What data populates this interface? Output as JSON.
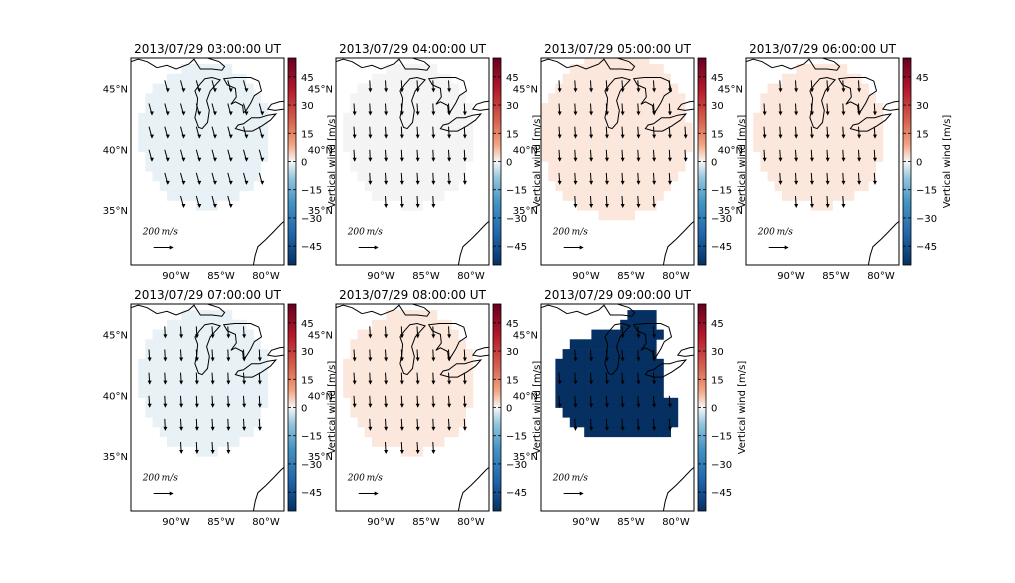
{
  "colors": {
    "strong_negative": "#053061",
    "light_negative": "#e8f1f5",
    "neutral": "#f4f4f4",
    "light_positive": "#fce7dc",
    "axis": "#000000"
  },
  "colorbar": {
    "label": "Vertical wind [m/s]",
    "ticks": [
      "45",
      "30",
      "15",
      "0",
      "−15",
      "−30",
      "−45"
    ],
    "range": [
      -55,
      55
    ],
    "colormap": "red-white-blue"
  },
  "axes_labels": {
    "x_ticks": [
      "90°W",
      "85°W",
      "80°W"
    ],
    "y_ticks": [
      "45°N",
      "40°N",
      "35°N"
    ]
  },
  "scale_label": "200 m/s",
  "panels": [
    {
      "title": "2013/07/29 03:00:00 UT",
      "fill": "light_negative",
      "extent": "medium",
      "wind_dir": "se"
    },
    {
      "title": "2013/07/29 04:00:00 UT",
      "fill": "neutral",
      "extent": "medium",
      "wind_dir": "s"
    },
    {
      "title": "2013/07/29 05:00:00 UT",
      "fill": "light_positive",
      "extent": "large",
      "wind_dir": "s"
    },
    {
      "title": "2013/07/29 06:00:00 UT",
      "fill": "light_positive",
      "extent": "medium",
      "wind_dir": "s"
    },
    {
      "title": "2013/07/29 07:00:00 UT",
      "fill": "light_negative",
      "extent": "medium",
      "wind_dir": "s"
    },
    {
      "title": "2013/07/29 08:00:00 UT",
      "fill": "light_positive",
      "extent": "medium",
      "wind_dir": "s"
    },
    {
      "title": "2013/07/29 09:00:00 UT",
      "fill": "strong_negative",
      "extent": "blobs",
      "wind_dir": "s"
    }
  ]
}
